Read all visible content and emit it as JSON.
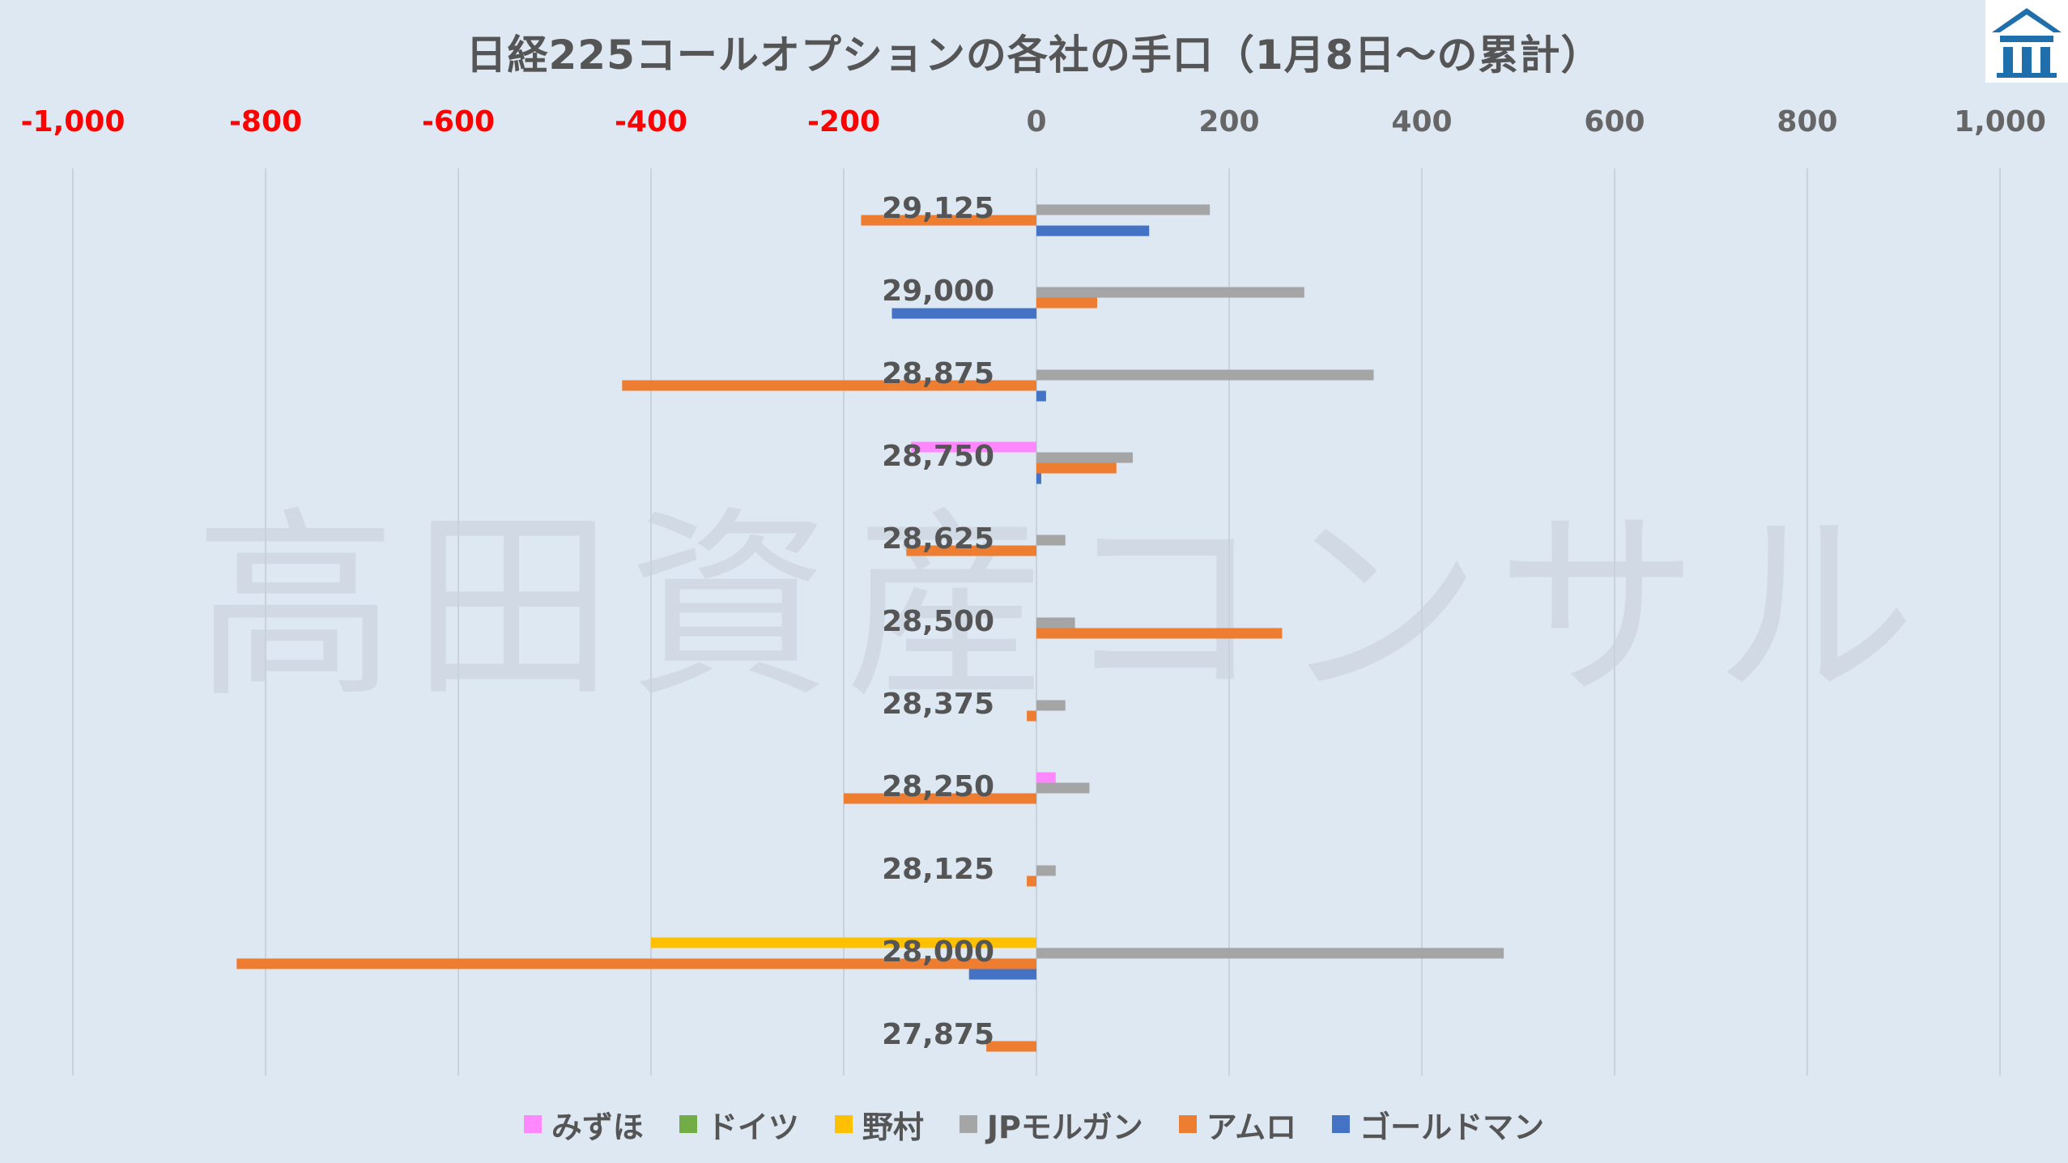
{
  "chart_data": {
    "type": "bar",
    "orientation": "horizontal",
    "title": "日経225コールオプションの各社の手口（1月8日～の累計）",
    "xlim": [
      -1000,
      1000
    ],
    "x_ticks": [
      "-1,000",
      "-800",
      "-600",
      "-400",
      "-200",
      "0",
      "200",
      "400",
      "600",
      "800",
      "1,000"
    ],
    "tick_values": [
      -1000,
      -800,
      -600,
      -400,
      -200,
      0,
      200,
      400,
      600,
      800,
      1000
    ],
    "negative_tick_color": "#ff0000",
    "positive_tick_color": "#666666",
    "grid": "vertical",
    "legend_position": "bottom",
    "categories": [
      "29,125",
      "29,000",
      "28,875",
      "28,750",
      "28,625",
      "28,500",
      "28,375",
      "28,250",
      "28,125",
      "28,000",
      "27,875"
    ],
    "series": [
      {
        "name": "みずほ",
        "color": "#ff88ff",
        "values": [
          0,
          0,
          0,
          -130,
          0,
          0,
          0,
          20,
          0,
          0,
          0
        ]
      },
      {
        "name": "ドイツ",
        "color": "#70ad47",
        "values": [
          0,
          0,
          0,
          0,
          0,
          0,
          0,
          0,
          0,
          0,
          0
        ]
      },
      {
        "name": "野村",
        "color": "#ffc000",
        "values": [
          0,
          0,
          0,
          0,
          0,
          0,
          0,
          0,
          0,
          -400,
          0
        ]
      },
      {
        "name": "JPモルガン",
        "color": "#a5a5a5",
        "values": [
          180,
          278,
          350,
          100,
          30,
          40,
          30,
          55,
          20,
          485,
          0
        ]
      },
      {
        "name": "アムロ",
        "color": "#ed7d31",
        "values": [
          -182,
          63,
          -430,
          83,
          -135,
          255,
          -10,
          -200,
          -10,
          -830,
          -52
        ]
      },
      {
        "name": "ゴールドマン",
        "color": "#4472c4",
        "values": [
          117,
          -150,
          10,
          5,
          0,
          0,
          0,
          0,
          0,
          -70,
          0
        ]
      }
    ]
  },
  "watermark": "高田資産コンサル",
  "logo": {
    "icon": "building-roof-icon",
    "color": "#1f6fad"
  }
}
